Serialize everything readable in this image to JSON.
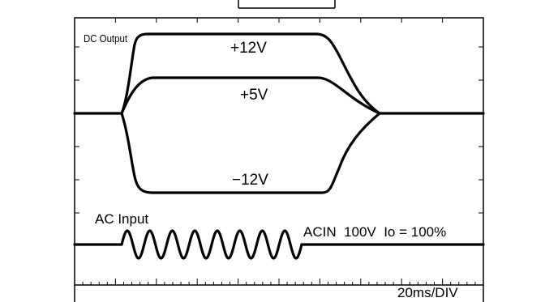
{
  "labels": {
    "dc_output": "DC Output",
    "plus12": "+12V",
    "plus5": "+5V",
    "minus12": "−12V",
    "ac_input": "AC Input",
    "condition": "ACIN  100V  Io = 100%",
    "timebase": "20ms/DIV"
  },
  "colors": {
    "trace": "#000000",
    "frame": "#000000",
    "background": "#ffffff"
  }
}
